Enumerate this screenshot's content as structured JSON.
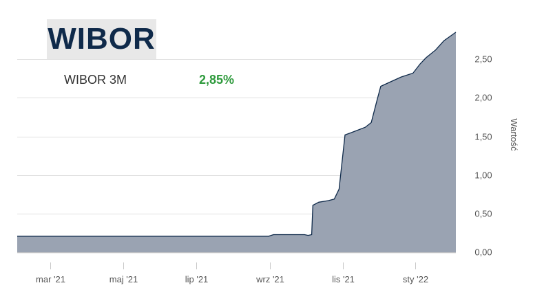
{
  "logo": {
    "text": "WIBOR"
  },
  "legend": {
    "series_name": "WIBOR 3M",
    "latest_value": "2,85%"
  },
  "colors": {
    "area_fill": "#9aa3b2",
    "line": "#0f2a4a",
    "logo_text": "#0f2a4a",
    "logo_bg": "#e8e8e8",
    "value_green": "#2e9a3c",
    "gridline": "#e0e0e0",
    "axis_text": "#555555"
  },
  "chart_data": {
    "type": "area",
    "title": "",
    "xlabel": "",
    "ylabel": "Wartość",
    "x_tick_labels": [
      "mar '21",
      "maj '21",
      "lip '21",
      "wrz '21",
      "lis '21",
      "sty '22"
    ],
    "x_tick_dates": [
      "2021-03-01",
      "2021-05-01",
      "2021-07-01",
      "2021-09-01",
      "2021-11-01",
      "2022-01-01"
    ],
    "y_tick_labels": [
      "0,00",
      "0,50",
      "1,00",
      "1,50",
      "2,00",
      "2,50"
    ],
    "y_tick_values": [
      0,
      0.5,
      1.0,
      1.5,
      2.0,
      2.5
    ],
    "xlim": [
      "2021-02-01",
      "2022-02-04"
    ],
    "ylim": [
      -0.05,
      3.0
    ],
    "grid": true,
    "y_axis_side": "right",
    "series": [
      {
        "name": "WIBOR 3M",
        "points": [
          [
            "2021-02-01",
            0.21
          ],
          [
            "2021-08-31",
            0.21
          ],
          [
            "2021-09-04",
            0.23
          ],
          [
            "2021-09-30",
            0.23
          ],
          [
            "2021-10-03",
            0.22
          ],
          [
            "2021-10-06",
            0.23
          ],
          [
            "2021-10-07",
            0.61
          ],
          [
            "2021-10-12",
            0.65
          ],
          [
            "2021-10-20",
            0.67
          ],
          [
            "2021-10-25",
            0.69
          ],
          [
            "2021-10-29",
            0.82
          ],
          [
            "2021-11-03",
            1.52
          ],
          [
            "2021-11-10",
            1.56
          ],
          [
            "2021-11-20",
            1.62
          ],
          [
            "2021-11-25",
            1.68
          ],
          [
            "2021-11-30",
            1.98
          ],
          [
            "2021-12-03",
            2.15
          ],
          [
            "2021-12-10",
            2.2
          ],
          [
            "2021-12-20",
            2.27
          ],
          [
            "2021-12-30",
            2.32
          ],
          [
            "2022-01-05",
            2.44
          ],
          [
            "2022-01-10",
            2.52
          ],
          [
            "2022-01-18",
            2.62
          ],
          [
            "2022-01-25",
            2.74
          ],
          [
            "2022-02-04",
            2.85
          ]
        ]
      }
    ]
  }
}
